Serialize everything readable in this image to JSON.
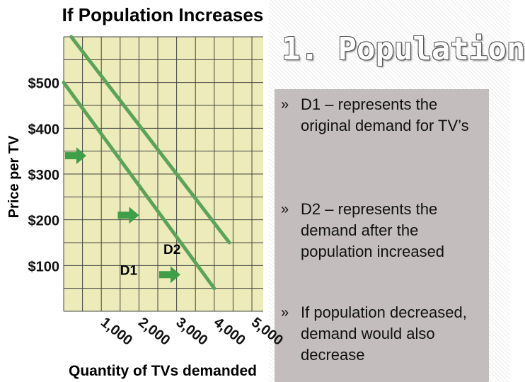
{
  "slide": {
    "title": "1.  Population",
    "bullets": [
      {
        "marker": "»",
        "text": "D1 – represents the original demand for TV’s"
      },
      {
        "marker": "»",
        "text": "D2 – represents the demand after the population increased"
      },
      {
        "marker": "»",
        "text": "If population decreased, demand would also decrease"
      }
    ]
  },
  "colors": {
    "title_purple": "#7b2e8e",
    "grid_bg": "#ecebb9",
    "demand_line": "#5aa45a",
    "shift_arrow": "#3f9e48",
    "panel": "#c4bdbd"
  },
  "chart_data": {
    "type": "line",
    "title": "If Population Increases",
    "xlabel": "Quantity of TVs demanded",
    "ylabel": "Price per TV",
    "x_ticks": [
      "1,000",
      "2,000",
      "3,000",
      "4,000",
      "5,000"
    ],
    "y_ticks": [
      "$100",
      "$200",
      "$300",
      "$400",
      "$500"
    ],
    "xlim": [
      0,
      5300
    ],
    "ylim": [
      0,
      600
    ],
    "grid": true,
    "series": [
      {
        "name": "D1",
        "x": [
          0,
          4000
        ],
        "y": [
          500,
          50
        ]
      },
      {
        "name": "D2",
        "x": [
          200,
          4400
        ],
        "y": [
          600,
          150
        ]
      }
    ],
    "shift_arrows": [
      {
        "x": 300,
        "y": 340,
        "direction": "right"
      },
      {
        "x": 1700,
        "y": 210,
        "direction": "right"
      },
      {
        "x": 2800,
        "y": 80,
        "direction": "right"
      }
    ]
  }
}
